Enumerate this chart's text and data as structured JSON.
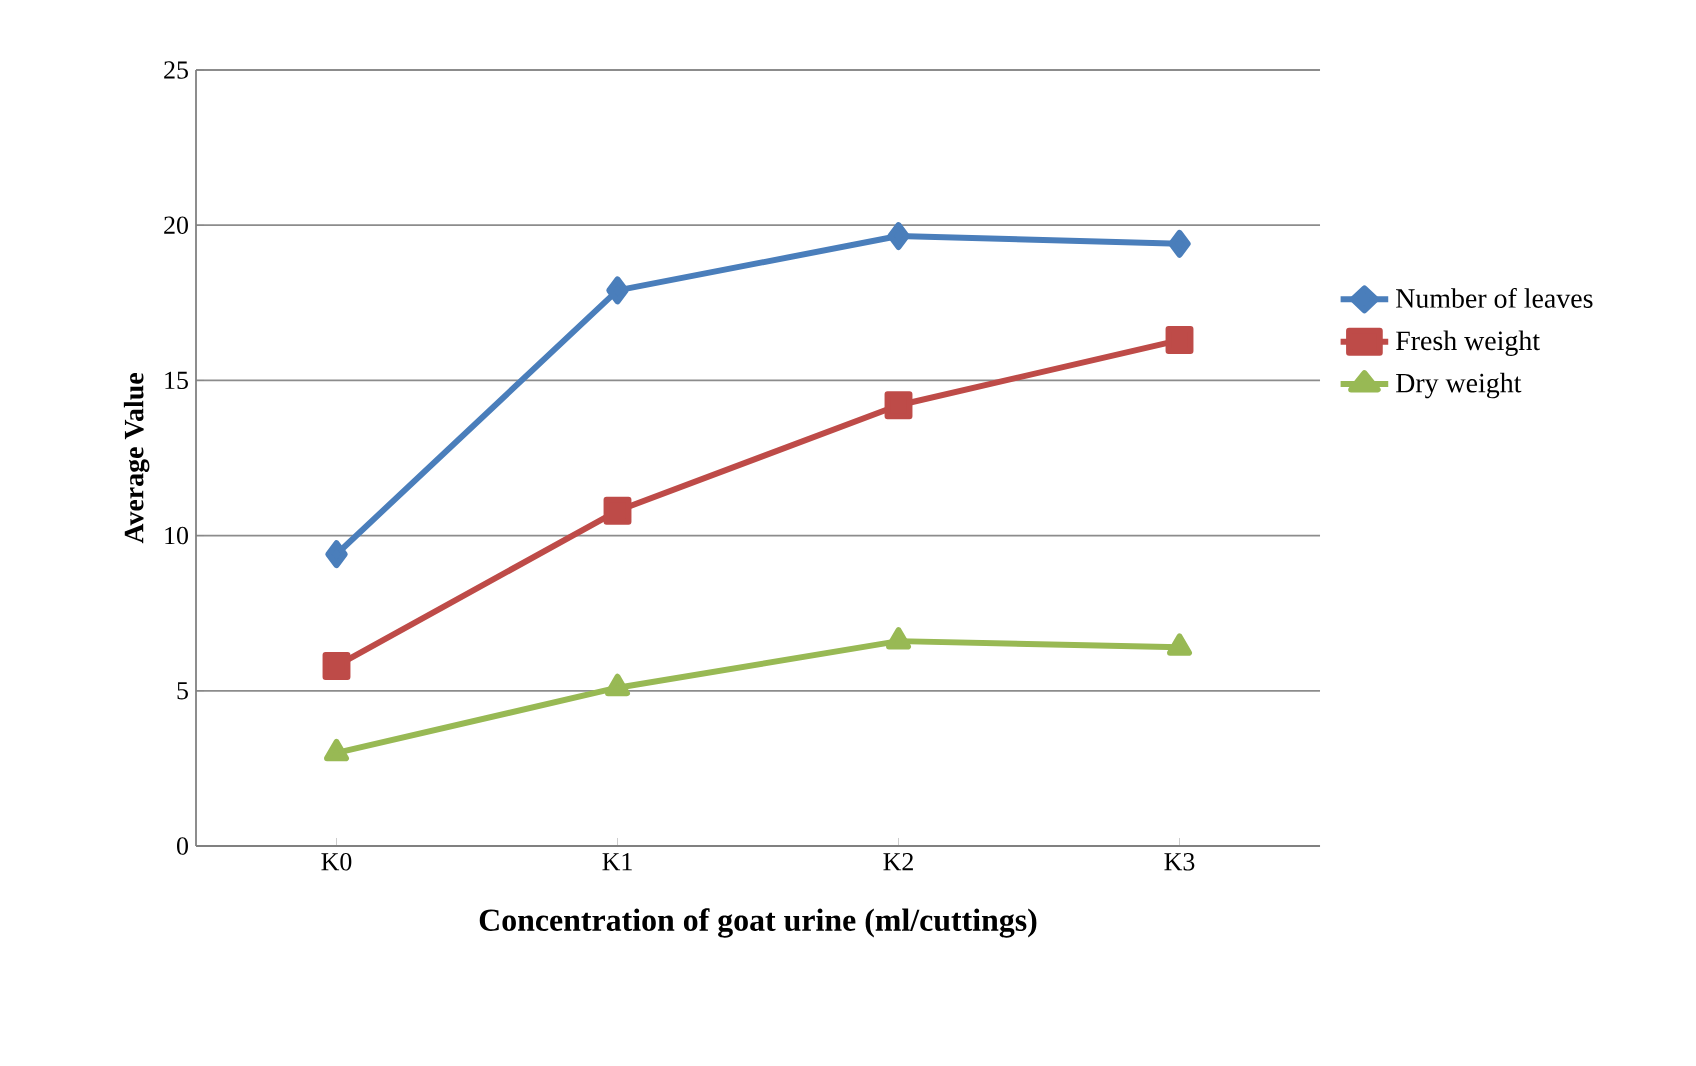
{
  "chart_data": {
    "type": "line",
    "xlabel": "Concentration of goat urine (ml/cuttings)",
    "ylabel": "Average Value",
    "categories": [
      "K0",
      "K1",
      "K2",
      "K3"
    ],
    "series": [
      {
        "name": "Number of leaves",
        "color": "#4a7ebb",
        "marker": "diamond",
        "values": [
          9.4,
          17.9,
          19.65,
          19.4
        ]
      },
      {
        "name": "Fresh weight",
        "color": "#be4b48",
        "marker": "square",
        "values": [
          5.8,
          10.8,
          14.2,
          16.3
        ]
      },
      {
        "name": "Dry weight",
        "color": "#98b954",
        "marker": "triangle",
        "values": [
          3.0,
          5.1,
          6.6,
          6.4
        ]
      }
    ],
    "ylim": [
      0,
      25
    ],
    "yticks": [
      0,
      5,
      10,
      15,
      20,
      25
    ],
    "grid": "y",
    "legend": "right",
    "line_style": "solid"
  }
}
